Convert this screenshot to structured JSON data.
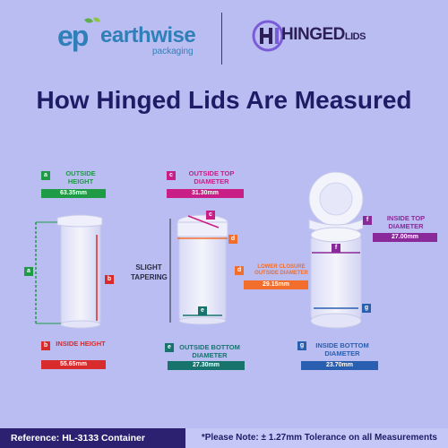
{
  "header": {
    "brand1_mark": "ep",
    "brand1_name": "earthwise",
    "brand1_sub": "packaging",
    "brand2_name": "HINGED",
    "brand2_suffix": "LIDS"
  },
  "title": "How Hinged Lids Are Measured",
  "measurements": {
    "a": {
      "tag": "a",
      "label": "OUTSIDE HEIGHT",
      "value": "63.35mm"
    },
    "b": {
      "tag": "b",
      "label": "INSIDE HEIGHT",
      "value": "55.65mm"
    },
    "c": {
      "tag": "c",
      "label": "OUTSIDE TOP DIAMETER",
      "value": "31.30mm"
    },
    "d": {
      "tag": "d",
      "label": "LOWER CLOSURE OUTSIDE DIAMETER",
      "value": "29.15mm"
    },
    "e": {
      "tag": "e",
      "label": "OUTSIDE BOTTOM DIAMETER",
      "value": "27.30mm"
    },
    "f": {
      "tag": "f",
      "label": "INSIDE TOP DIAMETER",
      "value": "27.00mm"
    },
    "g": {
      "tag": "g",
      "label": "INSIDE BOTTOM DIAMETER",
      "value": "23.70mm"
    }
  },
  "slight_tapering": "SLIGHT TAPERING",
  "footer": {
    "reference": "Reference: HL-3133 Container",
    "note": "*Please Note: ± 1.27mm Tolerance on all Measurements"
  },
  "colors": {
    "background": "#b9bdf2",
    "title": "#1e1c66",
    "a": "#1f9a45",
    "b": "#d82b2b",
    "c": "#c91e86",
    "d": "#f26e2c",
    "e": "#17746d",
    "f": "#8a2a9a",
    "g": "#2a5fb0"
  }
}
